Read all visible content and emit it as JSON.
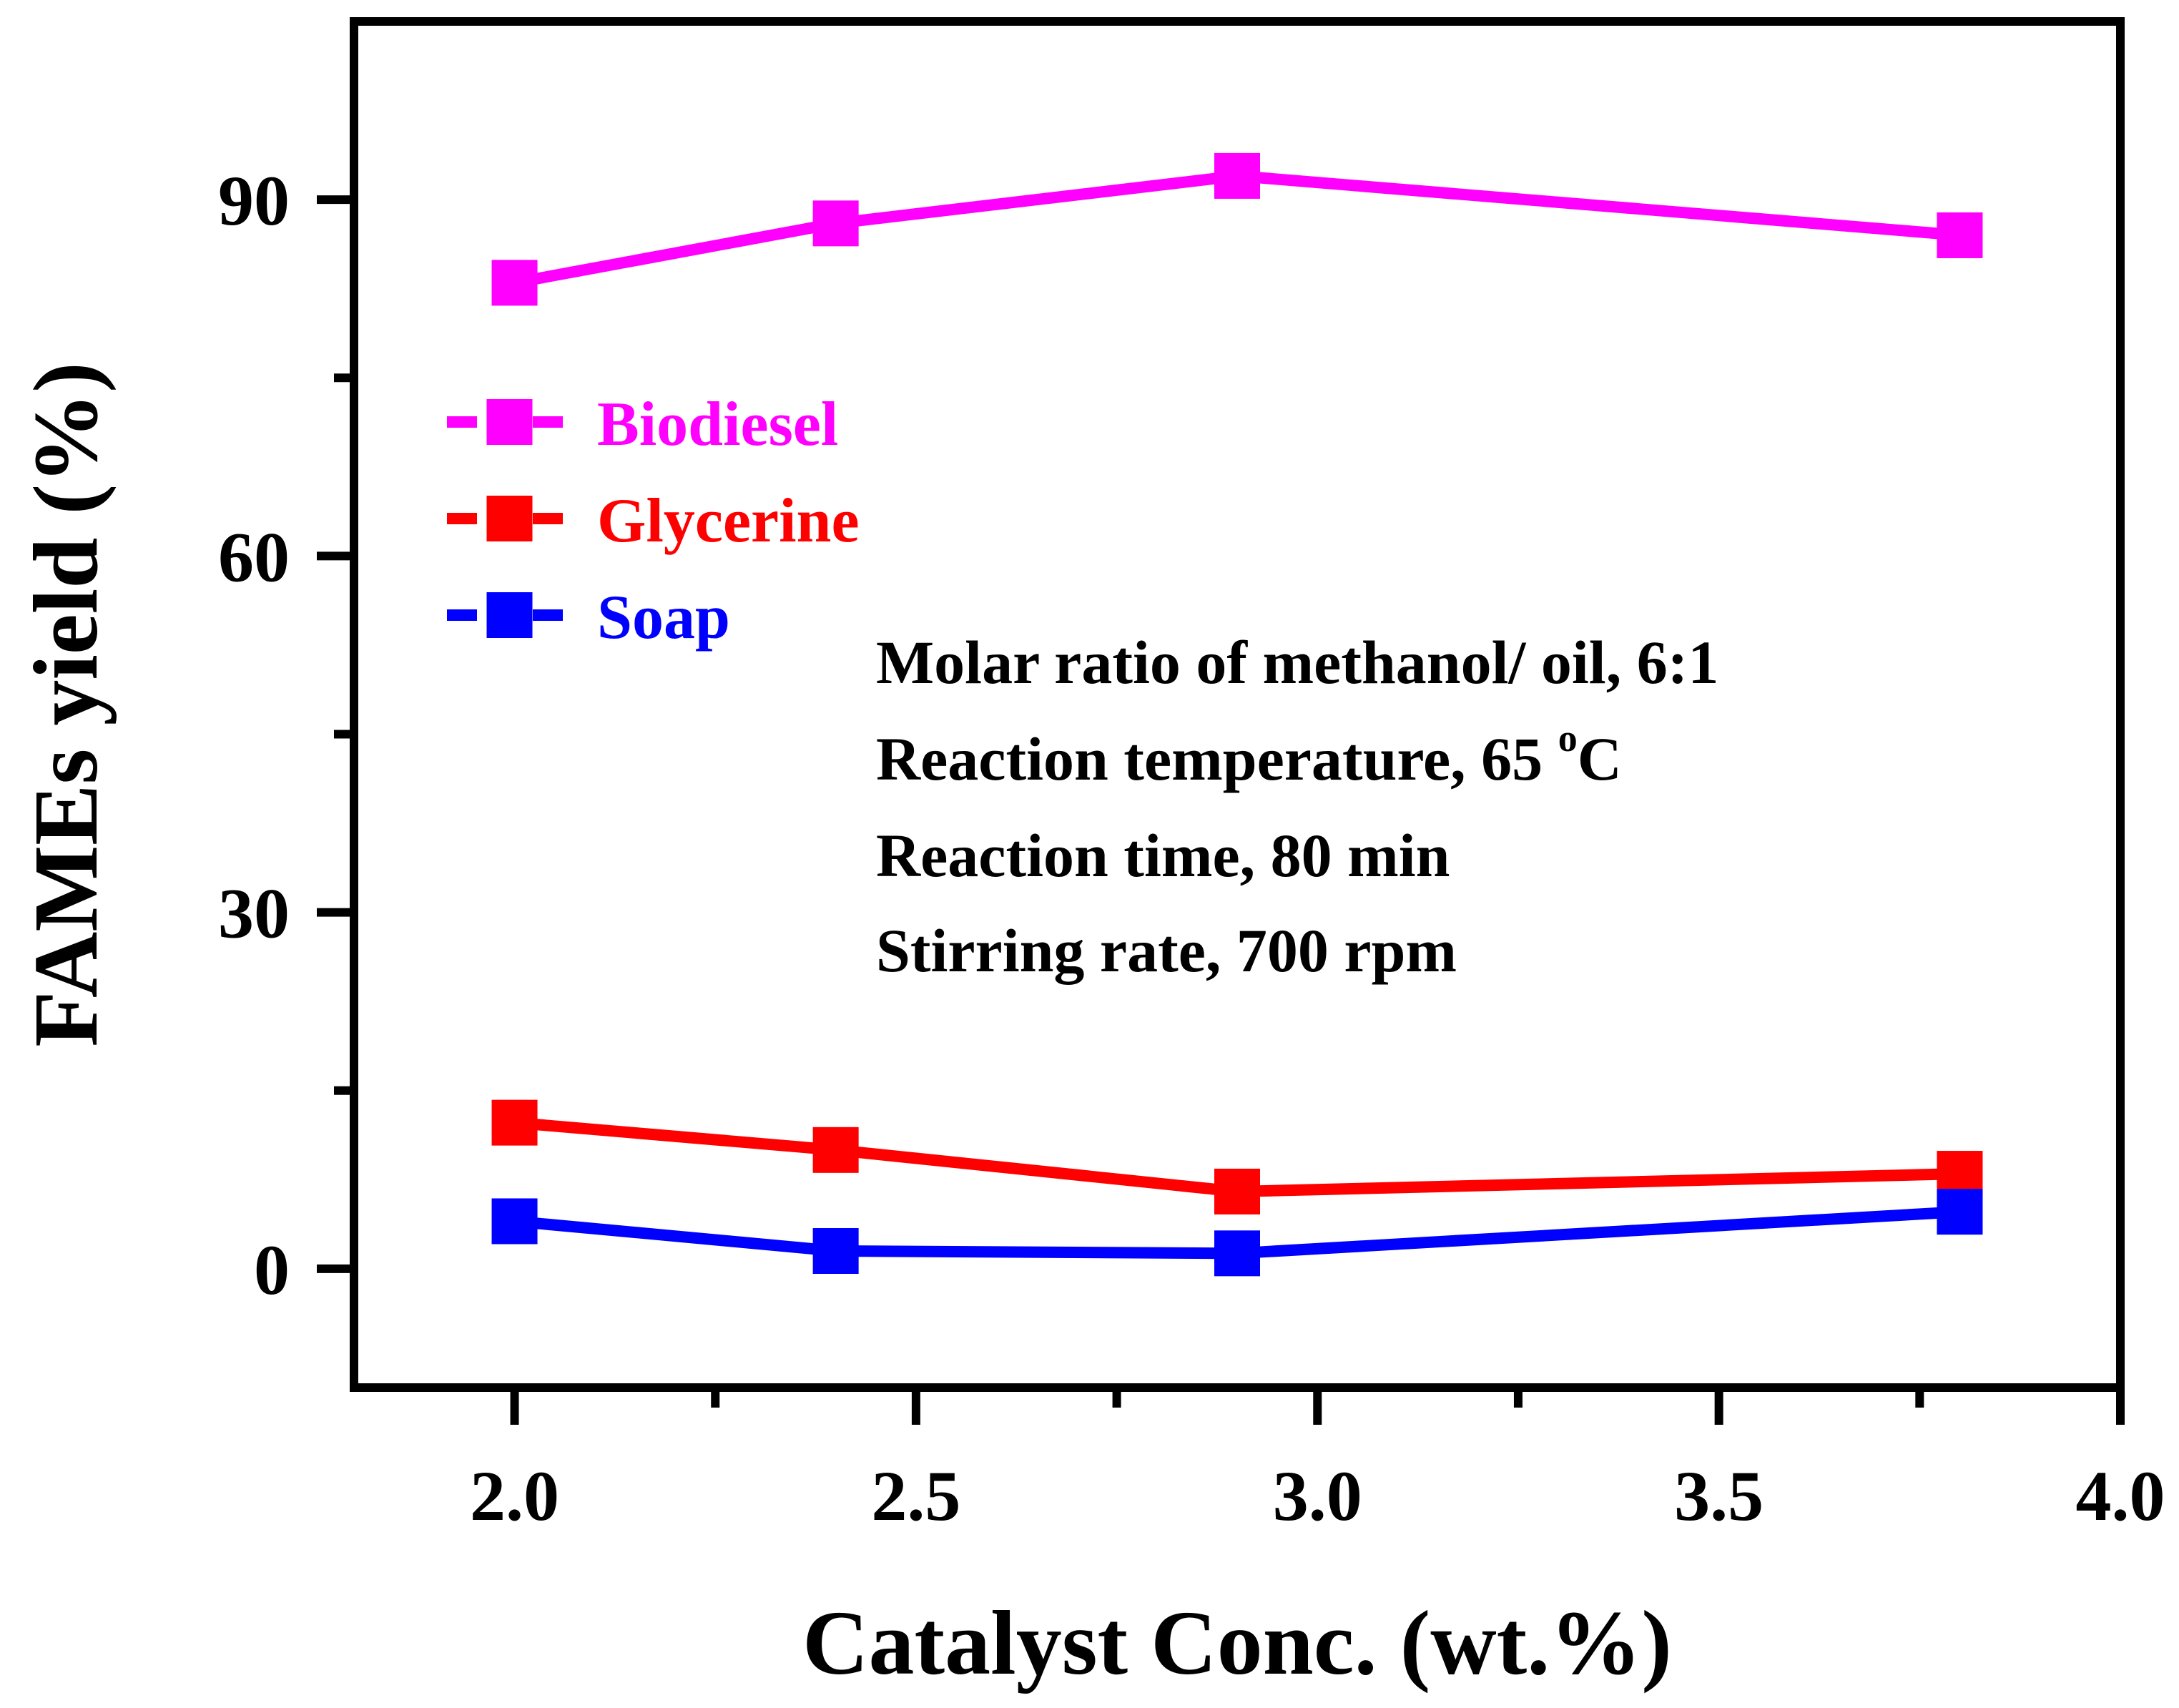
{
  "chart_data": {
    "type": "line",
    "title": "",
    "xlabel": "Catalyst Conc. (wt.%)",
    "ylabel": "FAMEs yield (%)",
    "xlim": [
      1.8,
      4.0
    ],
    "ylim": [
      -10,
      105
    ],
    "x_ticks": [
      2.0,
      2.5,
      3.0,
      3.5,
      4.0
    ],
    "x_tick_labels": [
      "2.0",
      "2.5",
      "3.0",
      "3.5",
      "4.0"
    ],
    "x_minor_ticks": [
      2.25,
      2.75,
      3.25,
      3.75
    ],
    "y_ticks": [
      0,
      30,
      60,
      90
    ],
    "y_tick_labels": [
      "0",
      "30",
      "60",
      "90"
    ],
    "y_minor_ticks": [
      15,
      45,
      75
    ],
    "grid": false,
    "legend_position": "top-left",
    "x": [
      2.0,
      2.4,
      2.9,
      3.8
    ],
    "series": [
      {
        "name": "Biodiesel",
        "color": "#ff00ff",
        "values": [
          83,
          88,
          92,
          87
        ]
      },
      {
        "name": "Glycerine",
        "color": "#ff0000",
        "values": [
          12.3,
          10,
          6.5,
          8
        ]
      },
      {
        "name": "Soap",
        "color": "#0000ff",
        "values": [
          4,
          1.5,
          1.3,
          4.8
        ]
      }
    ],
    "annotations": [
      {
        "key": "molar",
        "text": "Molar ratio of methanol/ oil, 6:1"
      },
      {
        "key": "temp",
        "text": "Reaction temperature, 65 ",
        "superscript": "o",
        "suffix": "C"
      },
      {
        "key": "time",
        "text": "Reaction time, 80 min"
      },
      {
        "key": "stir",
        "text": "Stirring rate, 700 rpm"
      }
    ]
  }
}
